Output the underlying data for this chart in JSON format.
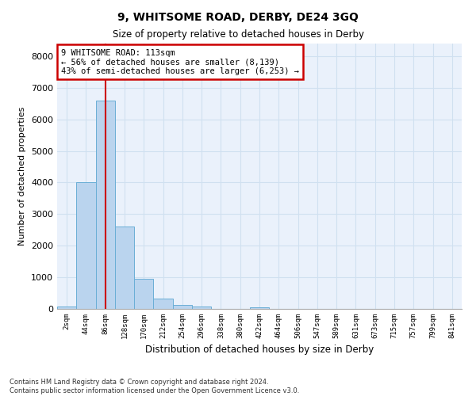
{
  "title": "9, WHITSOME ROAD, DERBY, DE24 3GQ",
  "subtitle": "Size of property relative to detached houses in Derby",
  "xlabel": "Distribution of detached houses by size in Derby",
  "ylabel": "Number of detached properties",
  "footer_line1": "Contains HM Land Registry data © Crown copyright and database right 2024.",
  "footer_line2": "Contains public sector information licensed under the Open Government Licence v3.0.",
  "bar_color": "#bad4ee",
  "bar_edge_color": "#6aaed6",
  "grid_color": "#d0e0f0",
  "background_color": "#eaf1fb",
  "annotation_box_color": "#cc0000",
  "property_line_color": "#cc0000",
  "bin_labels": [
    "2sqm",
    "44sqm",
    "86sqm",
    "128sqm",
    "170sqm",
    "212sqm",
    "254sqm",
    "296sqm",
    "338sqm",
    "380sqm",
    "422sqm",
    "464sqm",
    "506sqm",
    "547sqm",
    "589sqm",
    "631sqm",
    "673sqm",
    "715sqm",
    "757sqm",
    "799sqm",
    "841sqm"
  ],
  "bar_values": [
    70,
    4000,
    6600,
    2620,
    960,
    330,
    115,
    75,
    0,
    0,
    55,
    0,
    0,
    0,
    0,
    0,
    0,
    0,
    0,
    0,
    0
  ],
  "ylim": [
    0,
    8400
  ],
  "yticks": [
    0,
    1000,
    2000,
    3000,
    4000,
    5000,
    6000,
    7000,
    8000
  ],
  "property_bin_index": 2,
  "annotation_text_line1": "9 WHITSOME ROAD: 113sqm",
  "annotation_text_line2": "← 56% of detached houses are smaller (8,139)",
  "annotation_text_line3": "43% of semi-detached houses are larger (6,253) →",
  "num_bins": 21
}
